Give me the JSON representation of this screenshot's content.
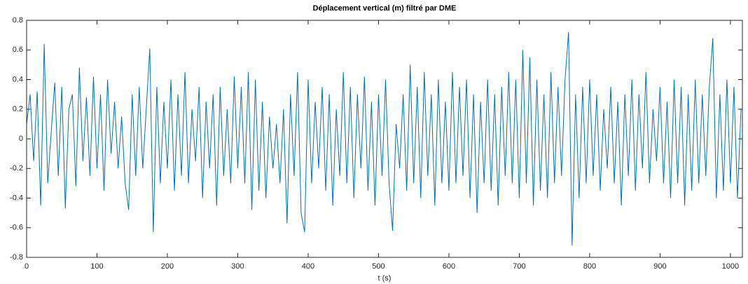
{
  "chart_data": {
    "type": "line",
    "title": "Déplacement vertical (m) filtré par DME",
    "xlabel": "t (s)",
    "xlim": [
      0,
      1017
    ],
    "ylim": [
      -0.8,
      0.8
    ],
    "xticks": [
      0,
      100,
      200,
      300,
      400,
      500,
      600,
      700,
      800,
      900,
      1000
    ],
    "yticks": [
      -0.8,
      -0.6,
      -0.4,
      -0.2,
      0,
      0.2,
      0.4,
      0.6,
      0.8
    ],
    "x": [
      0,
      5,
      10,
      15,
      20,
      25,
      30,
      35,
      40,
      45,
      50,
      55,
      60,
      65,
      70,
      75,
      80,
      85,
      90,
      95,
      100,
      105,
      110,
      115,
      120,
      125,
      130,
      135,
      140,
      145,
      150,
      155,
      160,
      165,
      170,
      175,
      180,
      185,
      190,
      195,
      200,
      205,
      210,
      215,
      220,
      225,
      230,
      235,
      240,
      245,
      250,
      255,
      260,
      265,
      270,
      275,
      280,
      285,
      290,
      295,
      300,
      305,
      310,
      315,
      320,
      325,
      330,
      335,
      340,
      345,
      350,
      355,
      360,
      365,
      370,
      375,
      380,
      385,
      390,
      395,
      400,
      405,
      410,
      415,
      420,
      425,
      430,
      435,
      440,
      445,
      450,
      455,
      460,
      465,
      470,
      475,
      480,
      485,
      490,
      495,
      500,
      505,
      510,
      515,
      520,
      525,
      530,
      535,
      540,
      545,
      550,
      555,
      560,
      565,
      570,
      575,
      580,
      585,
      590,
      595,
      600,
      605,
      610,
      615,
      620,
      625,
      630,
      635,
      640,
      645,
      650,
      655,
      660,
      665,
      670,
      675,
      680,
      685,
      690,
      695,
      700,
      705,
      710,
      715,
      720,
      725,
      730,
      735,
      740,
      745,
      750,
      755,
      760,
      765,
      770,
      775,
      780,
      785,
      790,
      795,
      800,
      805,
      810,
      815,
      820,
      825,
      830,
      835,
      840,
      845,
      850,
      855,
      860,
      865,
      870,
      875,
      880,
      885,
      890,
      895,
      900,
      905,
      910,
      915,
      920,
      925,
      930,
      935,
      940,
      945,
      950,
      955,
      960,
      965,
      970,
      975,
      980,
      985,
      990,
      995,
      1000,
      1005,
      1010,
      1015
    ],
    "series": [
      {
        "color": "#0072bd",
        "values": [
          0.1,
          0.3,
          -0.15,
          0.32,
          -0.45,
          0.64,
          -0.3,
          0.05,
          0.38,
          -0.25,
          0.35,
          -0.47,
          0.2,
          0.3,
          -0.32,
          0.48,
          -0.15,
          0.28,
          -0.25,
          0.42,
          -0.2,
          0.3,
          -0.35,
          0.4,
          -0.1,
          0.25,
          -0.2,
          0.15,
          -0.3,
          -0.48,
          0.3,
          -0.25,
          0.35,
          -0.2,
          0.2,
          0.61,
          -0.63,
          0.35,
          -0.3,
          0.25,
          -0.2,
          0.4,
          -0.35,
          0.3,
          -0.25,
          0.45,
          -0.3,
          0.2,
          -0.15,
          0.35,
          -0.4,
          0.25,
          -0.2,
          0.3,
          -0.45,
          0.35,
          -0.25,
          0.2,
          -0.3,
          0.42,
          -0.2,
          0.35,
          -0.3,
          0.45,
          -0.48,
          0.4,
          -0.35,
          0.25,
          -0.4,
          0.15,
          -0.2,
          0.1,
          -0.3,
          0.2,
          -0.57,
          0.3,
          -0.25,
          0.45,
          -0.5,
          -0.63,
          0.4,
          -0.3,
          0.25,
          -0.2,
          0.35,
          -0.35,
          0.3,
          -0.45,
          0.2,
          -0.25,
          0.45,
          -0.3,
          0.35,
          -0.4,
          0.3,
          -0.2,
          0.42,
          -0.35,
          0.25,
          -0.45,
          0.3,
          -0.25,
          0.4,
          -0.3,
          -0.62,
          0.1,
          -0.2,
          0.3,
          -0.35,
          0.5,
          -0.3,
          0.35,
          -0.4,
          0.45,
          -0.25,
          0.3,
          -0.45,
          0.4,
          -0.3,
          0.25,
          -0.35,
          0.45,
          -0.3,
          0.35,
          -0.25,
          0.4,
          -0.4,
          0.3,
          -0.5,
          0.25,
          -0.3,
          0.4,
          -0.35,
          0.3,
          -0.45,
          0.35,
          -0.25,
          0.45,
          -0.3,
          0.4,
          -0.4,
          0.6,
          -0.3,
          0.55,
          -0.45,
          0.4,
          -0.35,
          0.3,
          -0.4,
          0.45,
          -0.3,
          0.35,
          -0.25,
          0.4,
          0.72,
          -0.72,
          0.3,
          -0.4,
          0.35,
          -0.3,
          0.4,
          -0.25,
          0.3,
          -0.35,
          0.2,
          -0.2,
          0.35,
          -0.3,
          0.25,
          -0.45,
          0.3,
          -0.25,
          0.4,
          -0.35,
          0.3,
          -0.2,
          0.45,
          -0.3,
          0.2,
          -0.15,
          0.35,
          -0.3,
          0.25,
          -0.4,
          0.4,
          -0.3,
          0.35,
          -0.45,
          0.3,
          -0.35,
          0.4,
          -0.3,
          0.3,
          -0.25,
          0.35,
          0.68,
          -0.4,
          0.3,
          -0.35,
          0.4,
          -0.3,
          0.35,
          -0.4,
          0.2
        ]
      }
    ]
  }
}
